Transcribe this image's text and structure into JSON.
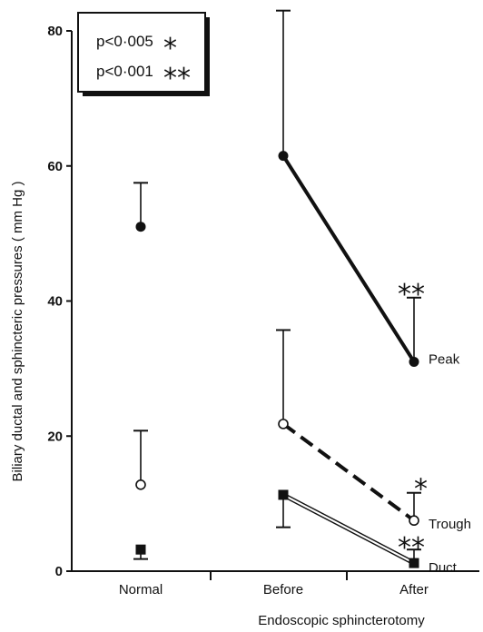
{
  "chart_data": {
    "type": "line",
    "ylabel": "Biliary ductal and sphincteric pressures  ( mm Hg )",
    "xlabel": "Endoscopic sphincterotomy",
    "ylim": [
      0,
      80
    ],
    "yticks": [
      "0",
      "20",
      "40",
      "60",
      "80"
    ],
    "categories": [
      "Normal",
      "Before",
      "After"
    ],
    "legend": {
      "placement": "top-left",
      "entries": [
        {
          "text": "p<0·005",
          "symbol": "*"
        },
        {
          "text": "p<0·001",
          "symbol": "**"
        }
      ]
    },
    "series": [
      {
        "name": "Peak",
        "marker": "filled-circle",
        "line": "thick-solid",
        "values": [
          51,
          61.5,
          31
        ],
        "error_upper": [
          57.5,
          83,
          40.5
        ]
      },
      {
        "name": "Trough",
        "marker": "open-circle",
        "line": "thick-dashed",
        "values": [
          12.8,
          21.8,
          7.5
        ],
        "error_upper": [
          20.8,
          35.7,
          11.6
        ]
      },
      {
        "name": "Duct",
        "marker": "filled-square",
        "line": "double-thin",
        "values": [
          3.2,
          11.3,
          1.2
        ],
        "error_upper": [
          3.2,
          11.3,
          3.2
        ],
        "error_lower": [
          1.8,
          6.5,
          1.2
        ]
      }
    ],
    "annotations": [
      {
        "text": "**",
        "series": "Peak",
        "category": "After"
      },
      {
        "text": "*",
        "series": "Trough",
        "category": "After"
      },
      {
        "text": "**",
        "series": "Duct",
        "category": "After"
      }
    ]
  }
}
